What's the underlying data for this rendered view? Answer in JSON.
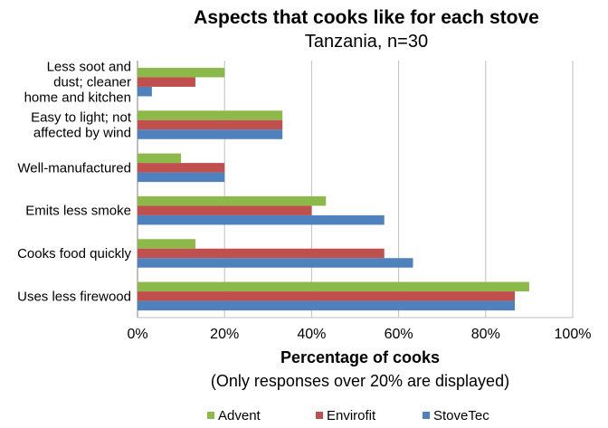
{
  "chart_data": {
    "type": "bar",
    "orientation": "horizontal",
    "title": "Aspects that cooks like for each stove",
    "subtitle": "Tanzania, n=30",
    "xlabel": "Percentage of cooks",
    "xlabel_note": "(Only responses over 20% are displayed)",
    "ylabel": "",
    "xlim": [
      0,
      100
    ],
    "x_ticks": [
      "0%",
      "20%",
      "40%",
      "60%",
      "80%",
      "100%"
    ],
    "grid": true,
    "legend_position": "bottom",
    "categories": [
      [
        "Less soot and",
        "dust; cleaner",
        "home and kitchen"
      ],
      [
        "Easy to light; not",
        "affected by wind"
      ],
      [
        "Well-manufactured"
      ],
      [
        "Emits less smoke"
      ],
      [
        "Cooks food quickly"
      ],
      [
        "Uses less firewood"
      ]
    ],
    "series": [
      {
        "name": "Advent",
        "color": "#8db84a",
        "values": [
          20,
          33.3,
          10,
          43.3,
          13.3,
          90
        ]
      },
      {
        "name": "Envirofit",
        "color": "#c0504d",
        "values": [
          13.3,
          33.3,
          20,
          40,
          56.7,
          86.7
        ]
      },
      {
        "name": "StoveTec",
        "color": "#4f81bd",
        "values": [
          3.3,
          33.3,
          20,
          56.7,
          63.3,
          86.7
        ]
      }
    ]
  }
}
